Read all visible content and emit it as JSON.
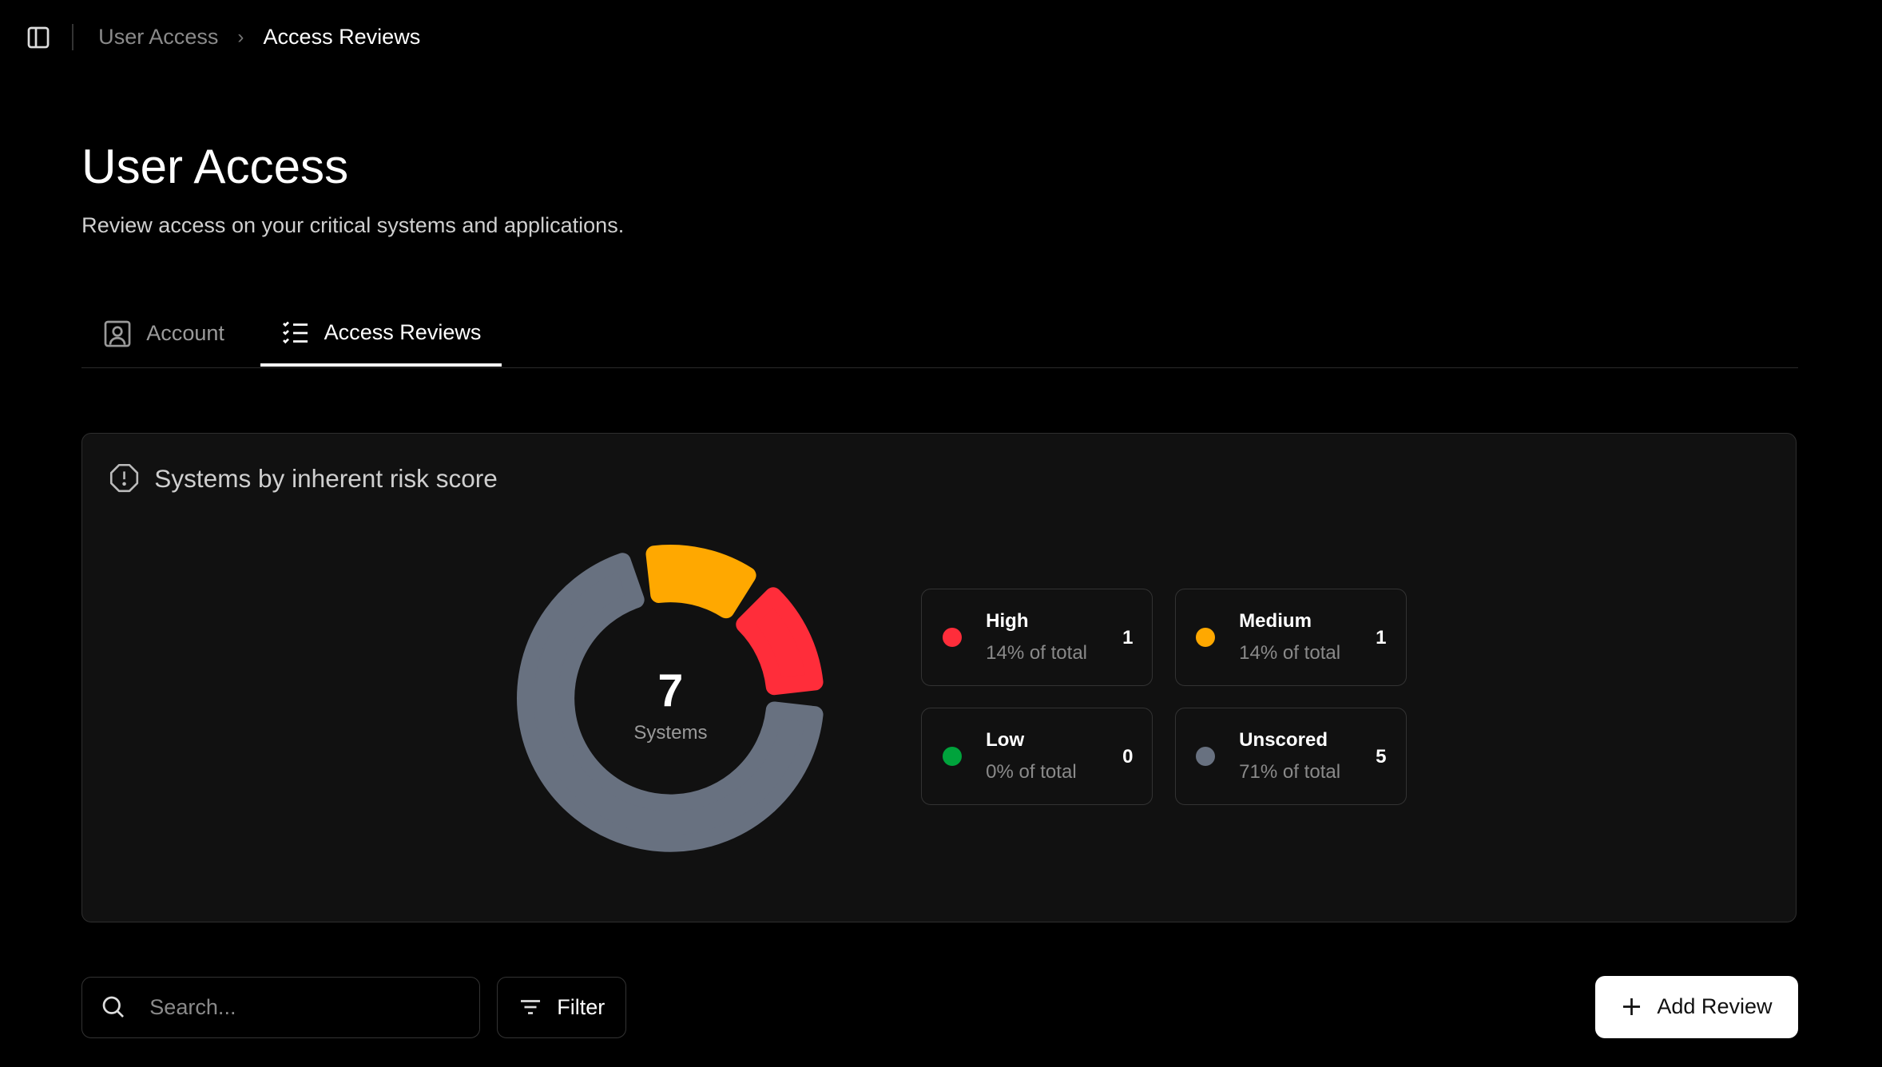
{
  "breadcrumb": {
    "items": [
      "User Access",
      "Access Reviews"
    ]
  },
  "page": {
    "title": "User Access",
    "subtitle": "Review access on your critical systems and applications."
  },
  "tabs": [
    {
      "label": "Account",
      "icon": "user-square-icon",
      "active": false
    },
    {
      "label": "Access Reviews",
      "icon": "list-checks-icon",
      "active": true
    }
  ],
  "risk_card": {
    "title": "Systems by inherent risk score",
    "total": "7",
    "total_label": "Systems",
    "categories": [
      {
        "name": "High",
        "count": 1,
        "count_label": "1",
        "percent_label": "14% of total",
        "color": "#FF2D3A"
      },
      {
        "name": "Medium",
        "count": 1,
        "count_label": "1",
        "percent_label": "14% of total",
        "color": "#FFA800"
      },
      {
        "name": "Low",
        "count": 0,
        "count_label": "0",
        "percent_label": "0% of total",
        "color": "#00A33C"
      },
      {
        "name": "Unscored",
        "count": 5,
        "count_label": "5",
        "percent_label": "71% of total",
        "color": "#687180"
      }
    ]
  },
  "toolbar": {
    "search_placeholder": "Search...",
    "filter_label": "Filter",
    "add_label": "Add Review"
  }
}
